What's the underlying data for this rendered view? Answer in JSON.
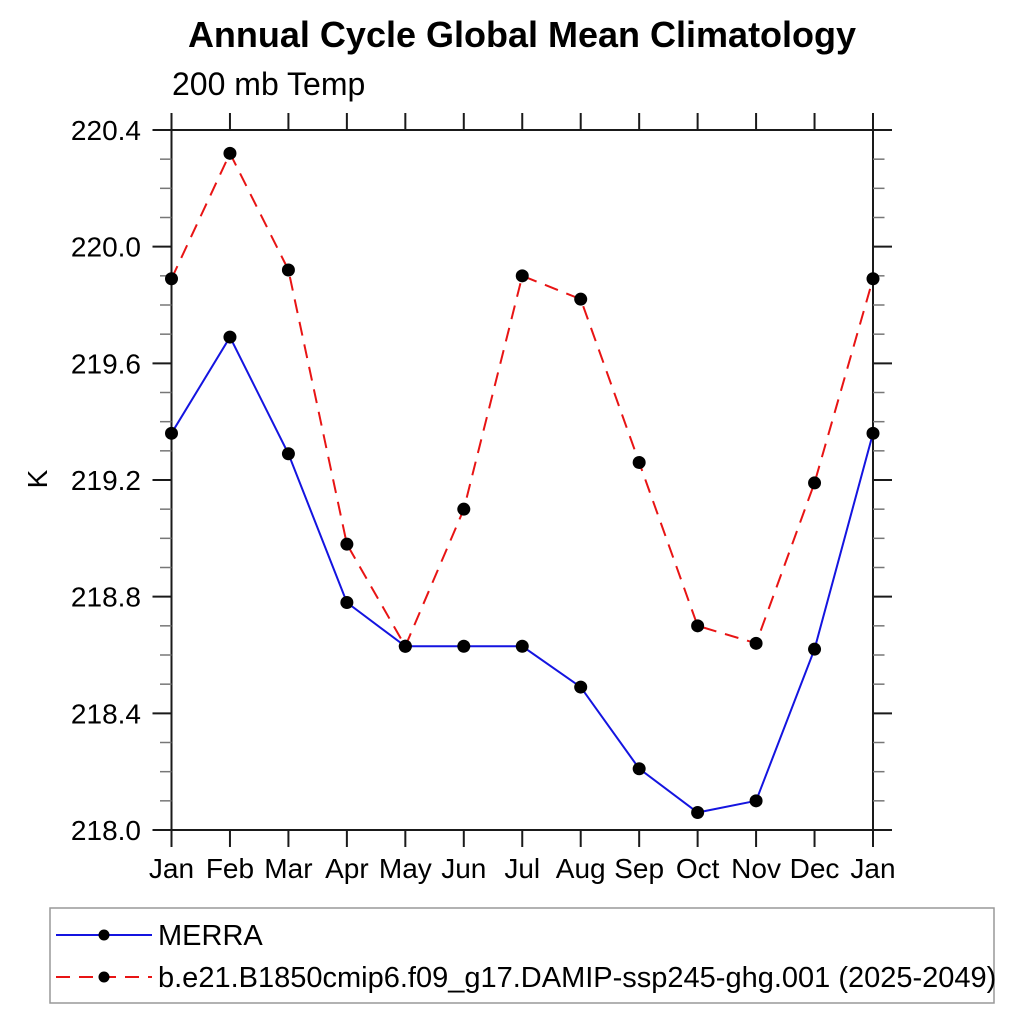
{
  "title": "Annual Cycle Global Mean Climatology",
  "subtitle": "200 mb Temp",
  "ylabel": "K",
  "colors": {
    "merra_line": "#1414e0",
    "model_line": "#e81414",
    "marker": "#000000",
    "axis": "#1a1a1a",
    "minor_tick": "#777777",
    "legend_border": "#999999"
  },
  "chart_data": {
    "type": "line",
    "categories": [
      "Jan",
      "Feb",
      "Mar",
      "Apr",
      "May",
      "Jun",
      "Jul",
      "Aug",
      "Sep",
      "Oct",
      "Nov",
      "Dec",
      "Jan"
    ],
    "series": [
      {
        "name": "MERRA",
        "style": "solid",
        "color": "#1414e0",
        "marker": "circle",
        "values": [
          219.36,
          219.69,
          219.29,
          218.78,
          218.63,
          218.63,
          218.63,
          218.49,
          218.21,
          218.06,
          218.1,
          218.62,
          219.36
        ]
      },
      {
        "name": "b.e21.B1850cmip6.f09_g17.DAMIP-ssp245-ghg.001 (2025-2049)",
        "style": "dashed",
        "color": "#e81414",
        "marker": "circle",
        "values": [
          219.89,
          220.32,
          219.92,
          218.98,
          218.63,
          219.1,
          219.9,
          219.82,
          219.26,
          218.7,
          218.64,
          219.19,
          219.89
        ]
      }
    ],
    "xlabel": "",
    "ylabel": "K",
    "ylim": [
      218.0,
      220.4
    ],
    "yticks": [
      "218.0",
      "218.4",
      "218.8",
      "219.2",
      "219.6",
      "220.0",
      "220.4"
    ],
    "yminor_step": 0.1,
    "grid": false,
    "legend_position": "bottom"
  }
}
